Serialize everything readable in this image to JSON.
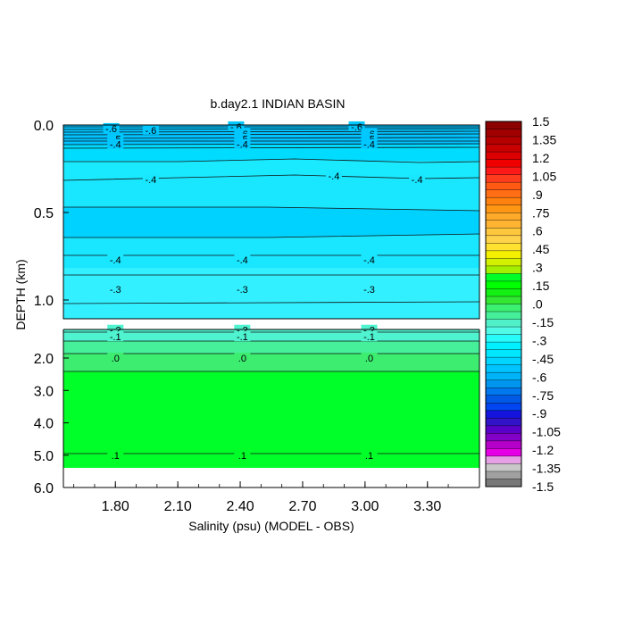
{
  "chart_data": {
    "type": "heatmap",
    "title": "b.day2.1 INDIAN BASIN",
    "xlabel": "Salinity (psu) (MODEL - OBS)",
    "ylabel": "DEPTH (km)",
    "x_ticks": [
      "1.80",
      "2.10",
      "2.40",
      "2.70",
      "3.00",
      "3.30"
    ],
    "upper_panel": {
      "y_ticks": [
        "0.0",
        "0.5",
        "1.0"
      ],
      "contour_labels": [
        {
          "text": "-.6",
          "x": 1.78,
          "depth": 0.02
        },
        {
          "text": "-.6",
          "x": 1.97,
          "depth": 0.03
        },
        {
          "text": "-.6",
          "x": 2.38,
          "depth": 0.01
        },
        {
          "text": "-.6",
          "x": 2.41,
          "depth": 0.05
        },
        {
          "text": "-.5",
          "x": 1.8,
          "depth": 0.08
        },
        {
          "text": "-.4",
          "x": 1.8,
          "depth": 0.11
        },
        {
          "text": "-.5",
          "x": 2.41,
          "depth": 0.08
        },
        {
          "text": "-.4",
          "x": 2.41,
          "depth": 0.11
        },
        {
          "text": "-.6",
          "x": 2.96,
          "depth": 0.01
        },
        {
          "text": "-.6",
          "x": 3.02,
          "depth": 0.05
        },
        {
          "text": "-.5",
          "x": 3.02,
          "depth": 0.08
        },
        {
          "text": "-.4",
          "x": 3.02,
          "depth": 0.11
        },
        {
          "text": "-.4",
          "x": 1.97,
          "depth": 0.31
        },
        {
          "text": "-.4",
          "x": 2.85,
          "depth": 0.29
        },
        {
          "text": "-.4",
          "x": 3.25,
          "depth": 0.31
        },
        {
          "text": "-.4",
          "x": 1.8,
          "depth": 0.77
        },
        {
          "text": "-.4",
          "x": 2.41,
          "depth": 0.77
        },
        {
          "text": "-.4",
          "x": 3.02,
          "depth": 0.77
        },
        {
          "text": "-.3",
          "x": 1.8,
          "depth": 0.94
        },
        {
          "text": "-.3",
          "x": 2.41,
          "depth": 0.94
        },
        {
          "text": "-.3",
          "x": 3.02,
          "depth": 0.94
        }
      ]
    },
    "lower_panel": {
      "y_ticks": [
        "2.0",
        "3.0",
        "4.0",
        "5.0",
        "6.0"
      ],
      "contour_labels": [
        {
          "text": "-.2",
          "x": 1.8,
          "depth": 1.12
        },
        {
          "text": "-.1",
          "x": 1.8,
          "depth": 1.33
        },
        {
          "text": "-.2",
          "x": 2.41,
          "depth": 1.12
        },
        {
          "text": "-.1",
          "x": 2.41,
          "depth": 1.33
        },
        {
          "text": "-.2",
          "x": 3.02,
          "depth": 1.12
        },
        {
          "text": "-.1",
          "x": 3.02,
          "depth": 1.33
        },
        {
          "text": ".0",
          "x": 1.8,
          "depth": 2.0
        },
        {
          "text": ".0",
          "x": 2.41,
          "depth": 2.0
        },
        {
          "text": ".0",
          "x": 3.02,
          "depth": 2.0
        },
        {
          "text": ".1",
          "x": 1.8,
          "depth": 5.0
        },
        {
          "text": ".1",
          "x": 2.41,
          "depth": 5.0
        },
        {
          "text": ".1",
          "x": 3.02,
          "depth": 5.0
        }
      ]
    },
    "colorbar": {
      "tick_labels": [
        "1.5",
        "1.35",
        "1.2",
        "1.05",
        ".9",
        ".75",
        ".6",
        ".45",
        ".3",
        ".15",
        ".0",
        "-.15",
        "-.3",
        "-.45",
        "-.6",
        "-.75",
        "-.9",
        "-1.05",
        "-1.2",
        "-1.35",
        "-1.5"
      ],
      "colors_top_to_bottom": [
        "#8b0000",
        "#a00000",
        "#b40000",
        "#c80000",
        "#dc0000",
        "#f00000",
        "#ff1a1a",
        "#ff3c1e",
        "#ff5a14",
        "#ff6e14",
        "#ff820f",
        "#ff9614",
        "#ffaa28",
        "#ffb432",
        "#ffc83c",
        "#ffd24b",
        "#ffe132",
        "#f5f000",
        "#d2f000",
        "#a5f000",
        "#00ff28",
        "#00ff00",
        "#14f014",
        "#32e632",
        "#3cf070",
        "#46f09a",
        "#50f0c8",
        "#50fae6",
        "#28fafa",
        "#00f0ff",
        "#00e6ff",
        "#00d4ff",
        "#00c3ff",
        "#00b4fa",
        "#0096f0",
        "#0078f0",
        "#005ae6",
        "#0046f0",
        "#1414dc",
        "#3214c8",
        "#5a00c8",
        "#8200c8",
        "#b400c8",
        "#e600e6",
        "#e6a0e6",
        "#c8c8c8",
        "#a0a0a0",
        "#787878"
      ]
    }
  }
}
